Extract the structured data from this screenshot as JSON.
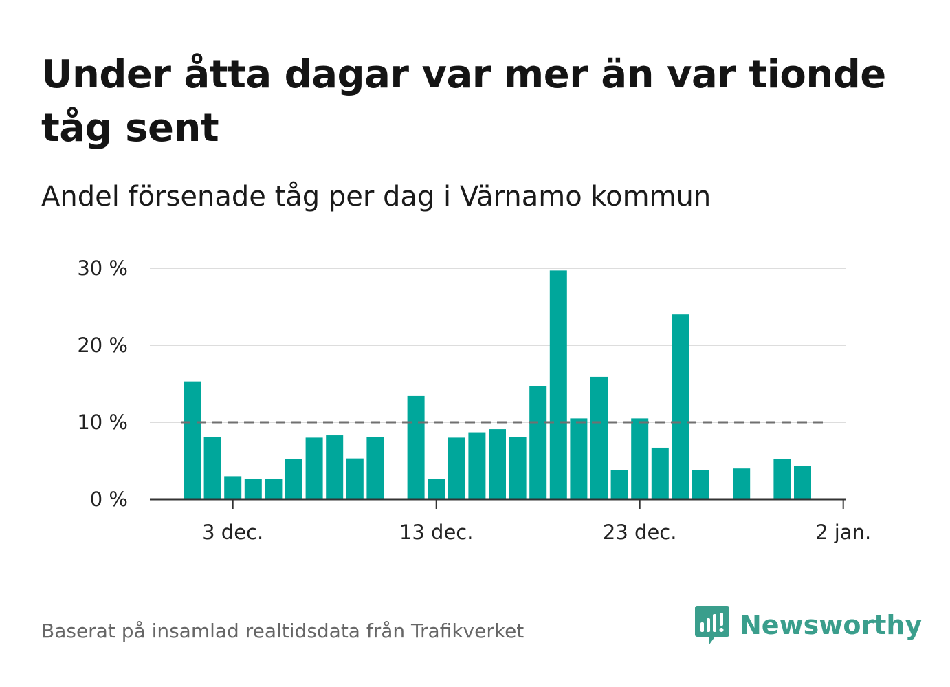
{
  "title": "Under åtta dagar var mer än var tionde tåg sent",
  "subtitle": "Andel försenade tåg per dag i Värnamo kommun",
  "source": "Baserat på insamlad realtidsdata från Trafikverket",
  "brand": {
    "name": "Newsworthy",
    "logo_icon": "newsworthy-logo-icon",
    "color": "#3a9e8c"
  },
  "chart_data": {
    "type": "bar",
    "x_type": "date",
    "x": [
      "1 dec.",
      "2 dec.",
      "3 dec.",
      "4 dec.",
      "5 dec.",
      "6 dec.",
      "7 dec.",
      "8 dec.",
      "9 dec.",
      "10 dec.",
      "11 dec.",
      "12 dec.",
      "13 dec.",
      "14 dec.",
      "15 dec.",
      "16 dec.",
      "17 dec.",
      "18 dec.",
      "19 dec.",
      "20 dec.",
      "21 dec.",
      "22 dec.",
      "23 dec.",
      "24 dec.",
      "25 dec.",
      "26 dec.",
      "27 dec.",
      "28 dec.",
      "29 dec.",
      "30 dec.",
      "31 dec.",
      "1 jan."
    ],
    "values": [
      15.3,
      8.1,
      3.0,
      2.6,
      2.6,
      5.2,
      8.0,
      8.3,
      5.3,
      8.1,
      null,
      13.4,
      2.6,
      8.0,
      8.7,
      9.1,
      8.1,
      14.7,
      29.7,
      10.5,
      15.9,
      3.8,
      10.5,
      6.7,
      24.0,
      3.8,
      null,
      4.0,
      null,
      5.2,
      4.3,
      null
    ],
    "reference_line": {
      "value": 10,
      "style": "dashed",
      "color": "#707070"
    },
    "ylim": [
      0,
      30
    ],
    "y_ticks": [
      {
        "value": 0,
        "label": "0 %"
      },
      {
        "value": 10,
        "label": "10 %"
      },
      {
        "value": 20,
        "label": "20 %"
      },
      {
        "value": 30,
        "label": "30 %"
      }
    ],
    "x_ticks": [
      {
        "x": "3 dec.",
        "label": "3 dec."
      },
      {
        "x": "13 dec.",
        "label": "13 dec."
      },
      {
        "x": "23 dec.",
        "label": "23 dec."
      },
      {
        "x": "2 jan.",
        "label": "2 jan."
      }
    ],
    "grid": "horizontal",
    "bar_color": "#00a79b",
    "gridline_color": "#dddddd",
    "axis_color": "#333333"
  }
}
